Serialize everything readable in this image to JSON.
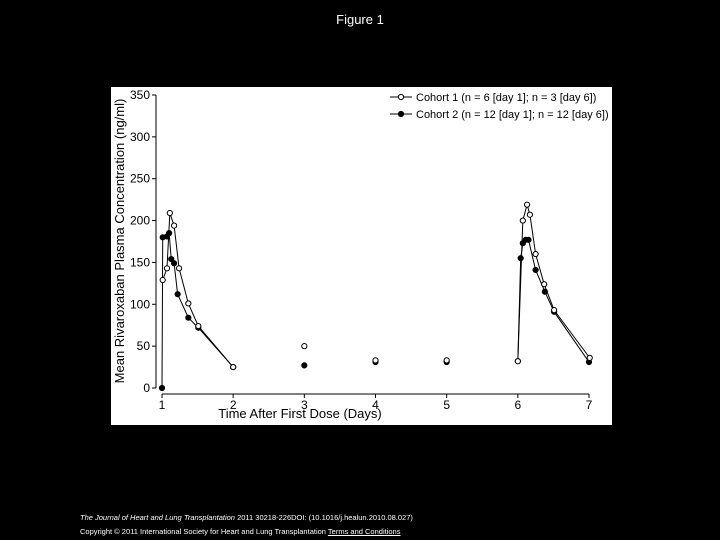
{
  "chart_data": {
    "type": "line",
    "title": "Figure 1",
    "xlabel": "Time After First Dose (Days)",
    "ylabel": "Mean Rivaroxaban Plasma Concentration (ng/ml)",
    "xlim": [
      1,
      7
    ],
    "xticks": [
      1,
      2,
      3,
      4,
      5,
      6,
      7
    ],
    "ylim": [
      0,
      350
    ],
    "yticks": [
      0,
      50,
      100,
      150,
      200,
      250,
      300,
      350
    ],
    "legend": "upper right",
    "series": [
      {
        "name": "Cohort 2 (n = 12 [day 1]; n = 12 [day 6])",
        "color": "#000000",
        "marker": "filled",
        "x": [
          1,
          1.01,
          1.07,
          1.1,
          1.13,
          1.17,
          1.22,
          1.37,
          1.51,
          2,
          3,
          4,
          5,
          6,
          6.04,
          6.07,
          6.11,
          6.15,
          6.25,
          6.38,
          6.51,
          7
        ],
        "values": [
          0,
          180,
          181,
          185,
          154,
          149,
          112,
          84,
          72,
          25,
          27,
          31,
          31,
          32,
          155,
          173,
          177,
          177,
          141,
          115,
          91,
          31
        ]
      },
      {
        "name": "Cohort 1 (n = 6 [day 1]; n = 3 [day 6])",
        "color": "#000000",
        "marker": "open",
        "x": [
          1.01,
          1.07,
          1.11,
          1.17,
          1.24,
          1.37,
          1.51,
          2,
          3,
          4,
          5,
          6,
          6.07,
          6.13,
          6.17,
          6.25,
          6.37,
          6.51,
          7.01
        ],
        "values": [
          129,
          143,
          209,
          194,
          143,
          101,
          74,
          25,
          50,
          33,
          33,
          32,
          200,
          219,
          207,
          160,
          124,
          93,
          36
        ]
      }
    ]
  },
  "footer": {
    "journal": "The Journal of Heart and Lung Transplantation",
    "citation": "2011 30218-226DOI: (10.1016/j.healun.2010.08.027)",
    "copyright": "Copyright © 2011 International Society for Heart and Lung Transplantation",
    "link": "Terms and Conditions"
  }
}
